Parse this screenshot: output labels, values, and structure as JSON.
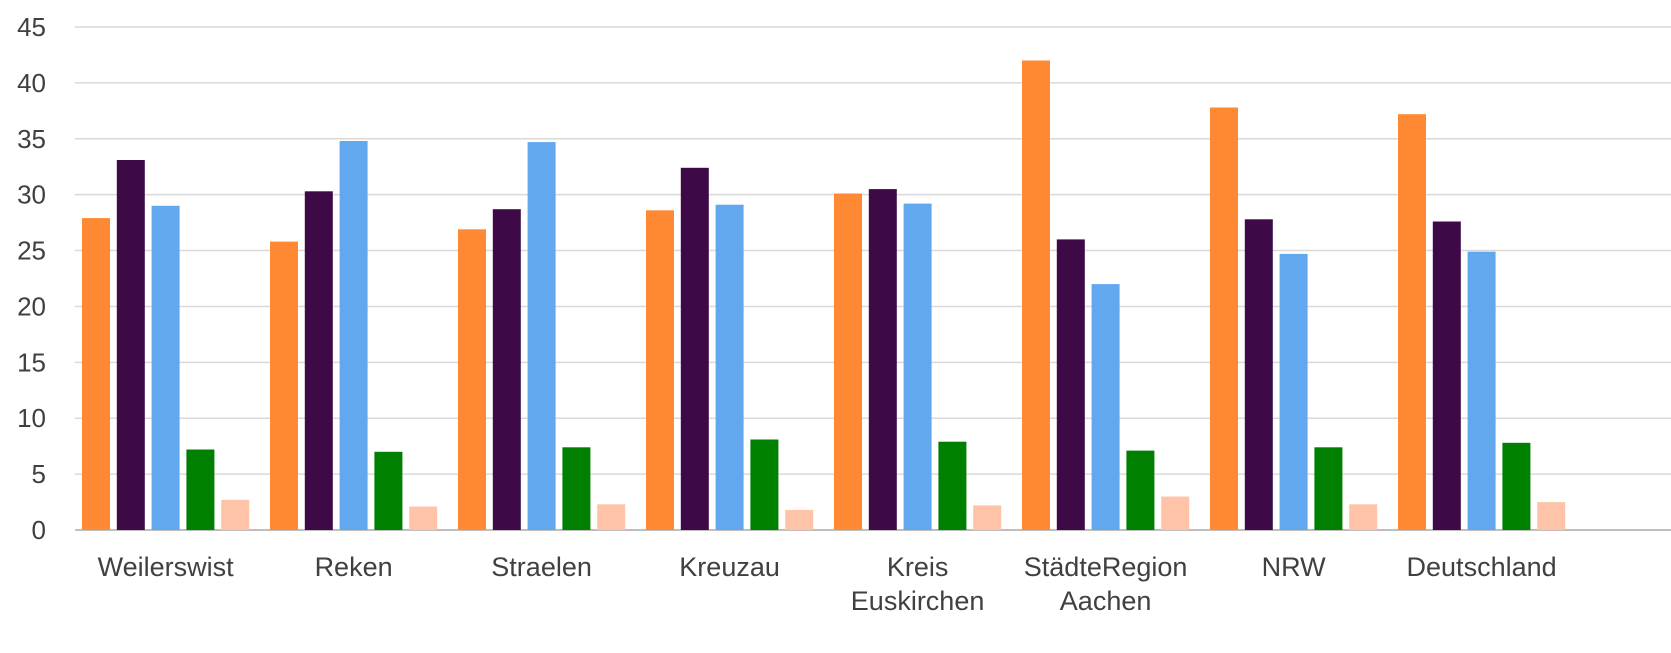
{
  "chart_data": {
    "type": "bar",
    "title": "",
    "xlabel": "",
    "ylabel": "",
    "ylim": [
      0,
      45
    ],
    "yticks": [
      0,
      5,
      10,
      15,
      20,
      25,
      30,
      35,
      40,
      45
    ],
    "grid": true,
    "legend": "none",
    "categories": [
      [
        "Weilerswist"
      ],
      [
        "Reken"
      ],
      [
        "Straelen"
      ],
      [
        "Kreuzau"
      ],
      [
        "Kreis",
        "Euskirchen"
      ],
      [
        "StädteRegion",
        "Aachen"
      ],
      [
        "NRW"
      ],
      [
        "Deutschland"
      ]
    ],
    "series": [
      {
        "color": "#FF8833",
        "values": [
          27.9,
          25.8,
          26.9,
          28.6,
          30.1,
          42.0,
          37.8,
          37.2
        ]
      },
      {
        "color": "#3D0A47",
        "values": [
          33.1,
          30.3,
          28.7,
          32.4,
          30.5,
          26.0,
          27.8,
          27.6
        ]
      },
      {
        "color": "#62A8EE",
        "values": [
          29.0,
          34.8,
          34.7,
          29.1,
          29.2,
          22.0,
          24.7,
          24.9
        ]
      },
      {
        "color": "#008000",
        "values": [
          7.2,
          7.0,
          7.4,
          8.1,
          7.9,
          7.1,
          7.4,
          7.8
        ]
      },
      {
        "color": "#FFC4A8",
        "values": [
          2.7,
          2.1,
          2.3,
          1.8,
          2.2,
          3.0,
          2.3,
          2.5
        ]
      }
    ]
  }
}
